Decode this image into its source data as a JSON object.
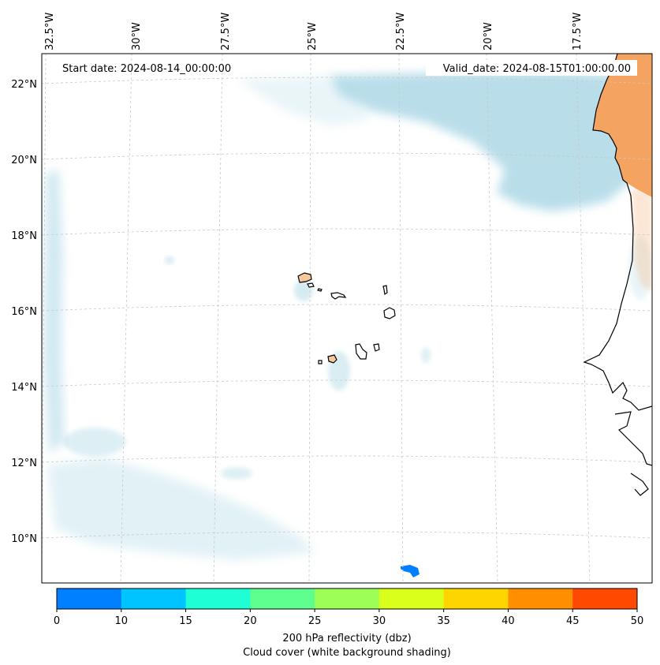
{
  "map": {
    "start_date_label": "Start date: 2024-08-14_00:00:00",
    "valid_date_label": "Valid_date: 2024-08-15T01:00:00.00",
    "lon_labels": [
      "32.5°W",
      "30°W",
      "27.5°W",
      "25°W",
      "22.5°W",
      "20°W",
      "17.5°W"
    ],
    "lat_labels": [
      "22°N",
      "20°N",
      "18°N",
      "16°N",
      "14°N",
      "12°N",
      "10°N"
    ],
    "land_color": "#f4a460",
    "cloud_color": "#add8e6",
    "coast_color": "#000000"
  },
  "colorbar": {
    "colors": [
      "#0080ff",
      "#00c4ff",
      "#1fffd5",
      "#5fff8f",
      "#9dff55",
      "#d9ff1a",
      "#ffd500",
      "#ff8f00",
      "#ff4800"
    ],
    "ticks": [
      "0",
      "10",
      "15",
      "20",
      "25",
      "30",
      "35",
      "40",
      "45",
      "50"
    ],
    "label_line1": "200 hPa reflectivity (dbz)",
    "label_line2": "Cloud cover (white background shading)"
  }
}
